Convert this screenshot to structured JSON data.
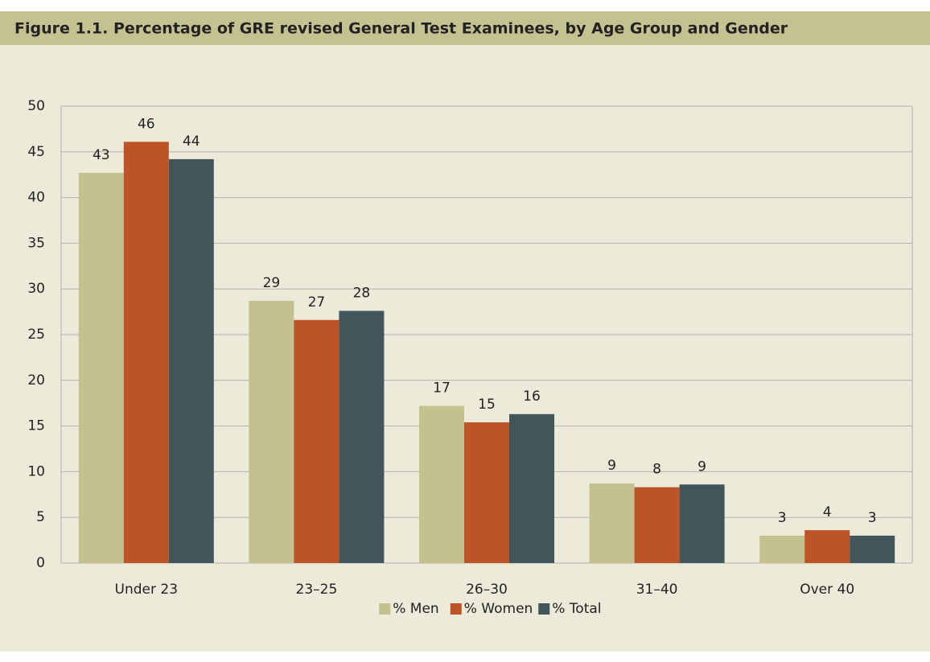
{
  "chart_data": {
    "type": "bar",
    "title": "Figure 1.1. Percentage of GRE revised General Test Examinees, by Age Group and Gender",
    "categories": [
      "Under 23",
      "23–25",
      "26–30",
      "31–40",
      "Over 40"
    ],
    "series": [
      {
        "name": "% Men",
        "color": "#c4c18e",
        "values": [
          42.7,
          28.7,
          17.2,
          8.7,
          3.0
        ],
        "value_labels": [
          "43",
          "29",
          "17",
          "9",
          "3"
        ]
      },
      {
        "name": "% Women",
        "color": "#bd5428",
        "values": [
          46.1,
          26.6,
          15.4,
          8.3,
          3.6
        ],
        "value_labels": [
          "46",
          "27",
          "15",
          "8",
          "4"
        ]
      },
      {
        "name": "% Total",
        "color": "#42555b",
        "values": [
          44.2,
          27.6,
          16.3,
          8.6,
          3.0
        ],
        "value_labels": [
          "44",
          "28",
          "16",
          "9",
          "3"
        ]
      }
    ],
    "ylim": [
      0,
      50
    ],
    "yticks": [
      0,
      5,
      10,
      15,
      20,
      25,
      30,
      35,
      40,
      45,
      50
    ],
    "grid": true,
    "legend": "bottom"
  }
}
